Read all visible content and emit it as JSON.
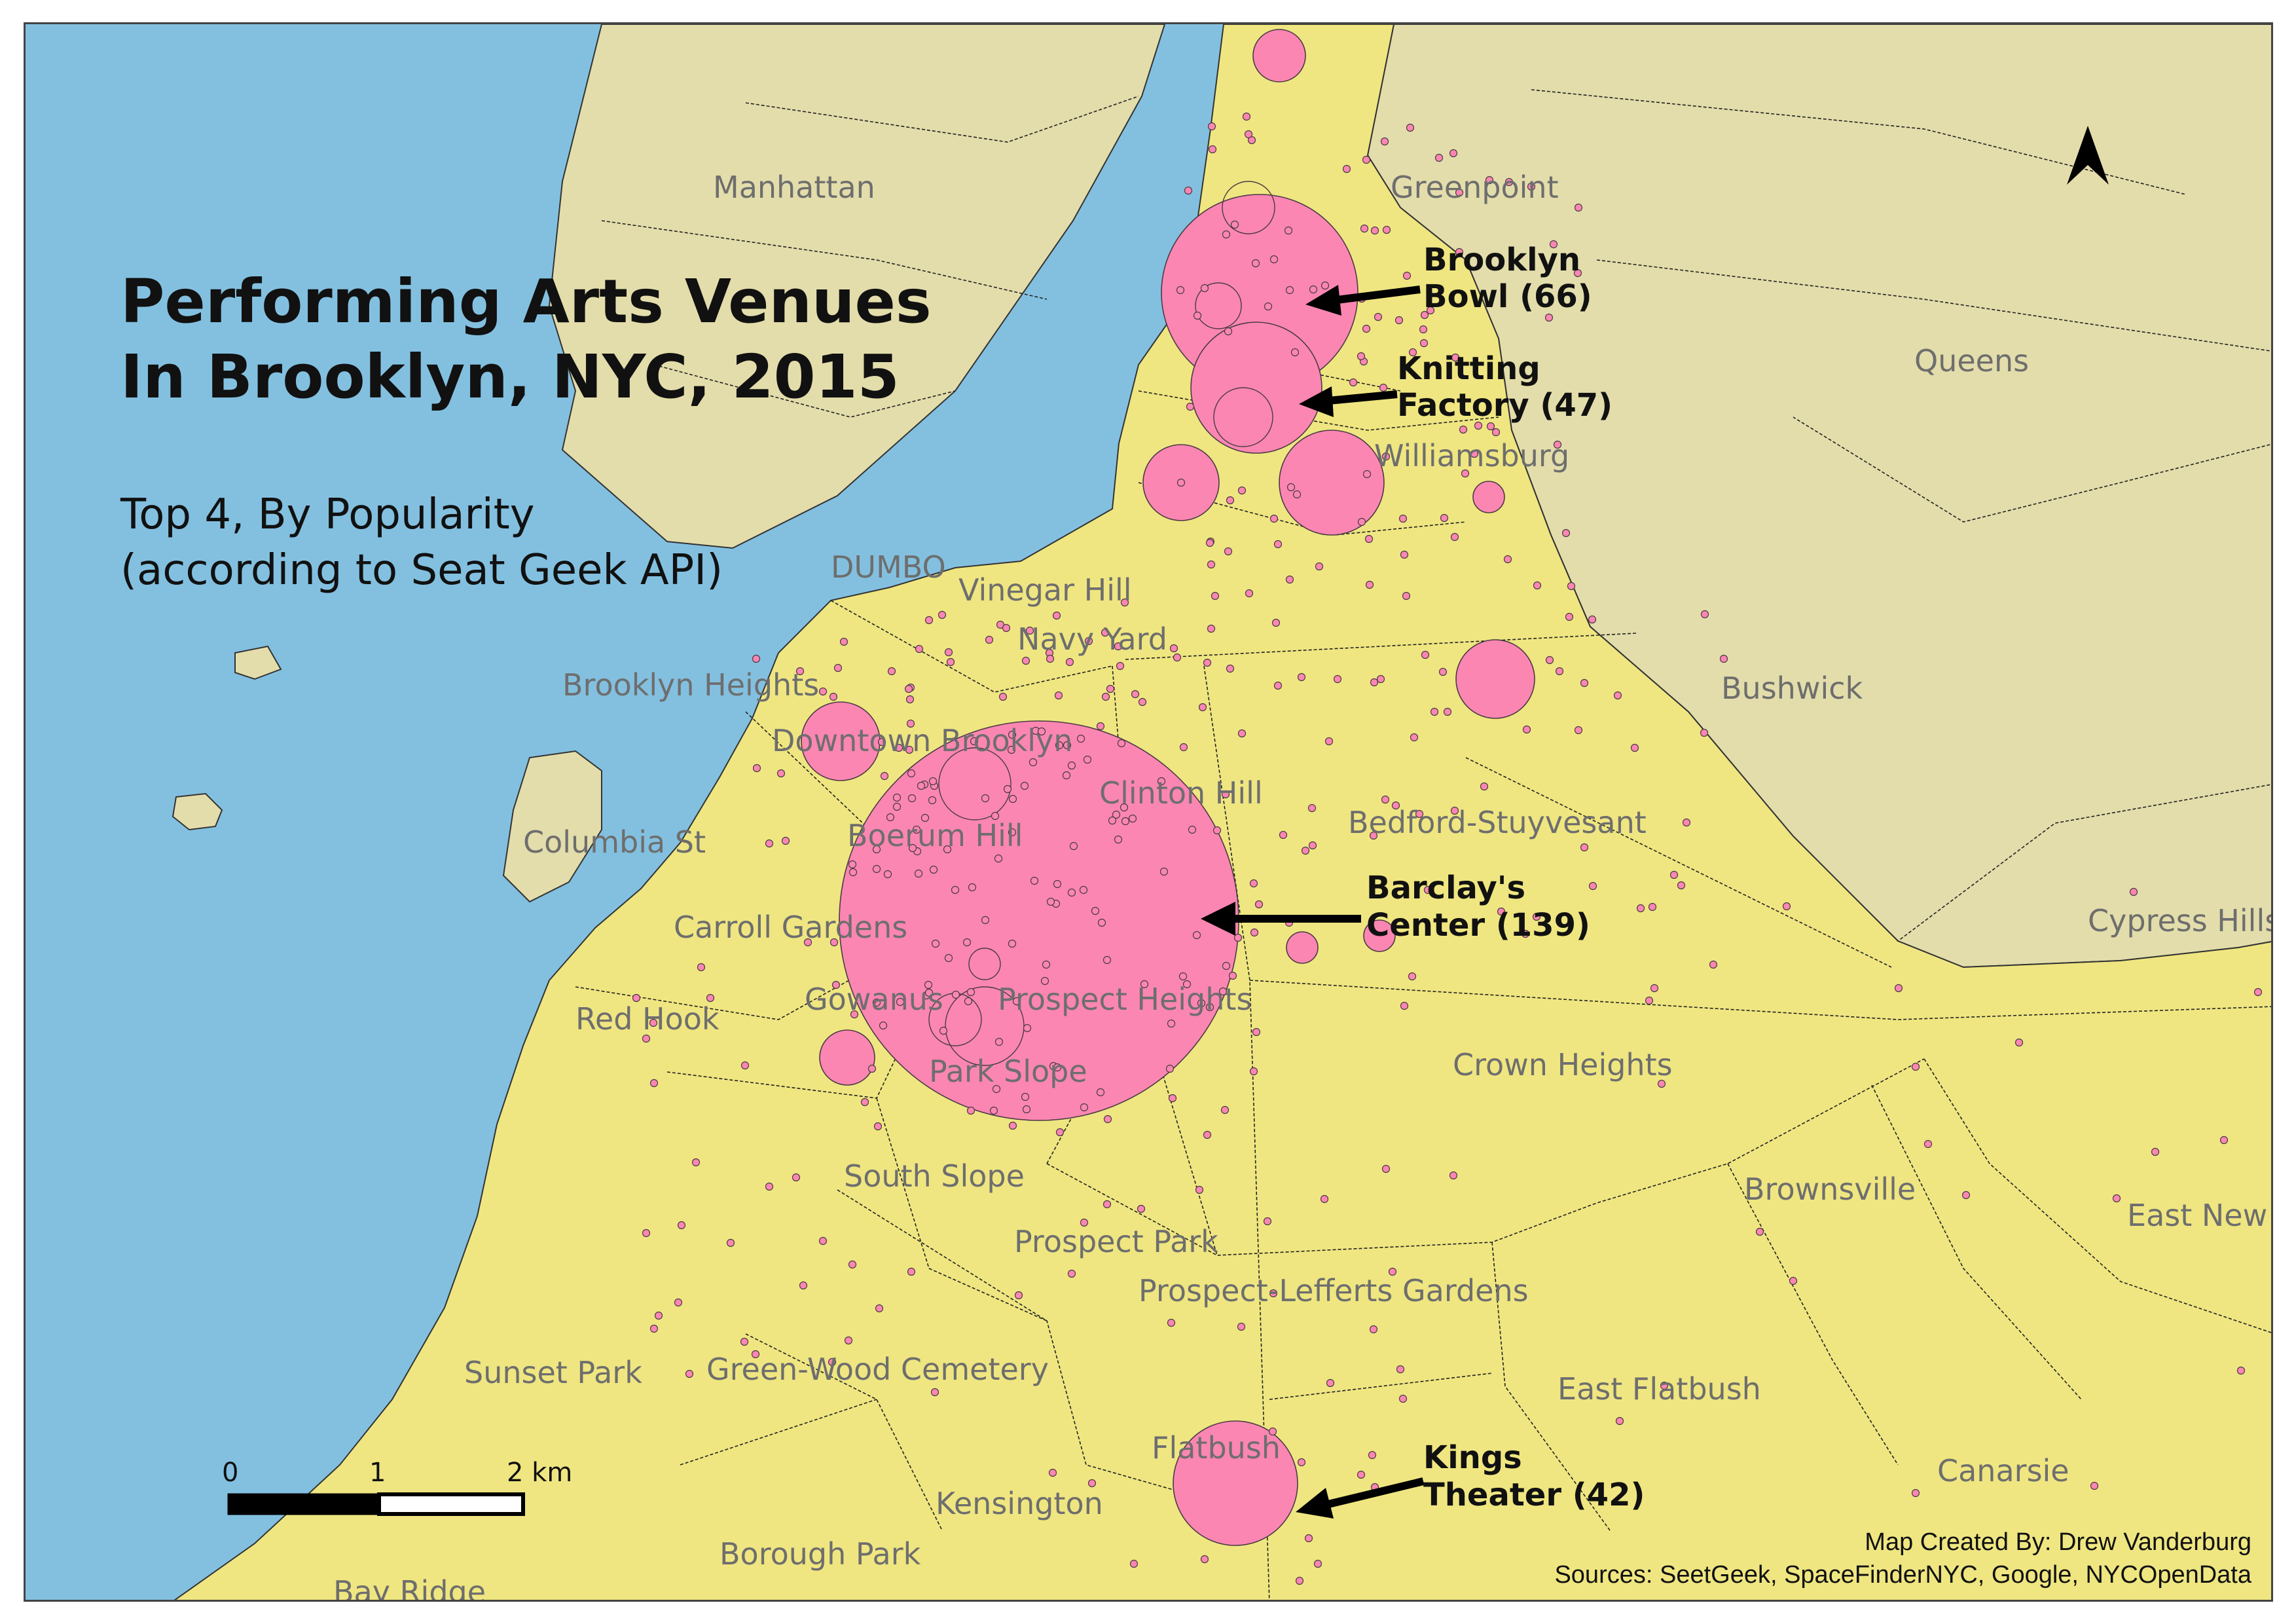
{
  "title": {
    "line1": "Performing Arts Venues",
    "line2": "In Brooklyn, NYC, 2015"
  },
  "subtitle": {
    "line1": "Top 4, By Popularity",
    "line2": "(according to Seat Geek API)"
  },
  "callouts": [
    {
      "line1": "Brooklyn",
      "line2": "Bowl (66)"
    },
    {
      "line1": "Knitting",
      "line2": "Factory (47)"
    },
    {
      "line1": "Barclay's",
      "line2": "Center (139)"
    },
    {
      "line1": "Kings",
      "line2": "Theater (42)"
    }
  ],
  "neighborhoods": [
    "Manhattan",
    "Greenpoint",
    "Queens",
    "Williamsburg",
    "DUMBO",
    "Vinegar Hill",
    "Navy Yard",
    "Brooklyn Heights",
    "Bushwick",
    "Downtown Brooklyn",
    "Clinton Hill",
    "Bedford-Stuyvesant",
    "Columbia St",
    "Boerum Hill",
    "Carroll Gardens",
    "Cypress Hills",
    "Red Hook",
    "Gowanus",
    "Prospect Heights",
    "Crown Heights",
    "Park Slope",
    "South Slope",
    "Brownsville",
    "Prospect Park",
    "East New",
    "Prospect-Lefferts Gardens",
    "Sunset Park",
    "Green-Wood Cemetery",
    "East Flatbush",
    "Flatbush",
    "Canarsie",
    "Kensington",
    "Borough Park",
    "Bay Ridge"
  ],
  "scale_bar": {
    "labels": [
      "0",
      "1",
      "2 km"
    ]
  },
  "north_arrow": {
    "icon": "north-arrow-icon"
  },
  "credits": {
    "line1": "Map Created By: Drew Vanderburg",
    "line2": "Sources: SeetGeek, SpaceFinderNYC, Google, NYCOpenData"
  },
  "colors": {
    "water": "#83c0e0",
    "brooklyn": "#efe681",
    "other_boroughs": "#e3ddab",
    "venue": "#fb86b2"
  }
}
